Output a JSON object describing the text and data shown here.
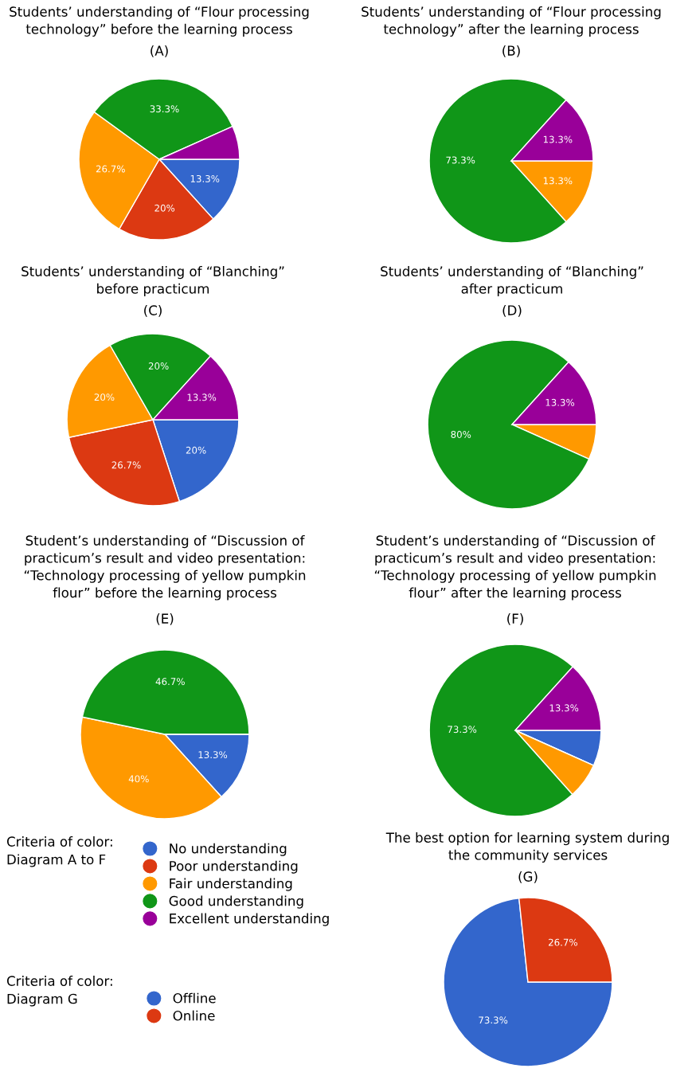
{
  "chart_data": [
    {
      "type": "pie",
      "title": "Students’ understanding of “Flour processing\ntechnology” before the learning process",
      "subtitle": "(A)",
      "categories": [
        null,
        null,
        null,
        null,
        null
      ],
      "values": [
        13.3,
        20,
        26.7,
        33.3,
        6.7
      ],
      "value_labels": [
        "13.3%",
        "20%",
        "26.7%",
        "33.3%",
        null
      ],
      "colors": [
        "#3366cc",
        "#dc3912",
        "#ff9900",
        "#109618",
        "#990099"
      ]
    },
    {
      "type": "pie",
      "title": "Students’ understanding of “Flour processing\ntechnology” after the learning process",
      "subtitle": "(B)",
      "categories": [
        null,
        null,
        null,
        null,
        null
      ],
      "values": [
        0,
        0,
        13.3,
        73.3,
        13.3
      ],
      "value_labels": [
        null,
        null,
        "13.3%",
        "73.3%",
        "13.3%"
      ],
      "colors": [
        "#3366cc",
        "#dc3912",
        "#ff9900",
        "#109618",
        "#990099"
      ]
    },
    {
      "type": "pie",
      "title": "Students’ understanding of “Blanching”\nbefore practicum",
      "subtitle": "(C)",
      "categories": [
        null,
        null,
        null,
        null,
        null
      ],
      "values": [
        20,
        26.7,
        20,
        20,
        13.3
      ],
      "value_labels": [
        "20%",
        "26.7%",
        "20%",
        "20%",
        "13.3%"
      ],
      "colors": [
        "#3366cc",
        "#dc3912",
        "#ff9900",
        "#109618",
        "#990099"
      ]
    },
    {
      "type": "pie",
      "title": "Students’ understanding of “Blanching”\nafter practicum",
      "subtitle": "(D)",
      "categories": [
        null,
        null,
        null,
        null,
        null
      ],
      "values": [
        0,
        0,
        6.7,
        80,
        13.3
      ],
      "value_labels": [
        null,
        null,
        null,
        "80%",
        "13.3%"
      ],
      "colors": [
        "#3366cc",
        "#dc3912",
        "#ff9900",
        "#109618",
        "#990099"
      ]
    },
    {
      "type": "pie",
      "title": "Student’s understanding of “Discussion of\npracticum’s result and video presentation:\n“Technology processing of yellow pumpkin\nflour” before the learning process",
      "subtitle": "(E)",
      "categories": [
        "No understanding",
        "Poor understanding",
        "Fair understanding",
        "Good understanding",
        "Excellent understanding"
      ],
      "values": [
        13.3,
        0,
        40,
        46.7,
        0
      ],
      "value_labels": [
        "13.3%",
        null,
        "40%",
        "46.7%",
        null
      ],
      "colors": [
        "#3366cc",
        "#dc3912",
        "#ff9900",
        "#109618",
        "#990099"
      ],
      "legend": "bottom",
      "legend_title": "Criteria of color:\nDiagram A to F"
    },
    {
      "type": "pie",
      "title": "Student’s understanding of “Discussion of\npracticum’s result and video presentation:\n“Technology processing of yellow pumpkin\nflour” after the learning process",
      "subtitle": "(F)",
      "categories": [
        null,
        null,
        null,
        null,
        null
      ],
      "values": [
        6.7,
        0,
        6.7,
        73.3,
        13.3
      ],
      "value_labels": [
        null,
        null,
        null,
        "73.3%",
        "13.3%"
      ],
      "colors": [
        "#3366cc",
        "#dc3912",
        "#ff9900",
        "#109618",
        "#990099"
      ]
    },
    {
      "type": "pie",
      "title": "The best option for learning system during\nthe community services",
      "subtitle": "(G)",
      "categories": [
        "Offline",
        "Online"
      ],
      "values": [
        73.3,
        26.7
      ],
      "value_labels": [
        "73.3%",
        "26.7%"
      ],
      "colors": [
        "#3366cc",
        "#dc3912"
      ],
      "legend": "left",
      "legend_title": "Criteria of color:\nDiagram G"
    }
  ]
}
